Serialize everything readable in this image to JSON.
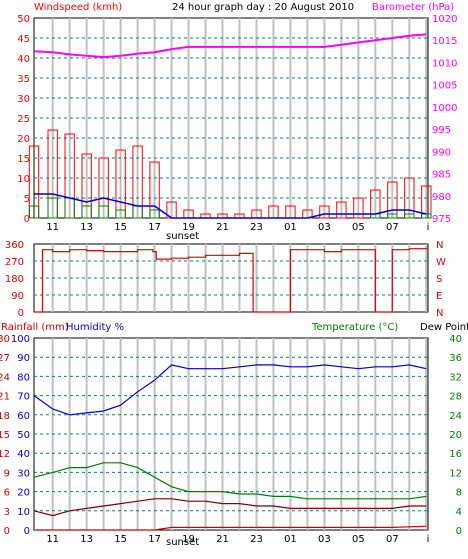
{
  "colors": {
    "wind_speed": "#ff0000",
    "wind_gust": "#008000",
    "wind_avg": "#0000cc",
    "barometer": "#ff00ff",
    "direction": "#dd0000",
    "humidity": "#0000cc",
    "temperature": "#008000",
    "dew_point": "#800000",
    "rainfall": "#cc0000",
    "grid_hour": "#c0c0c0",
    "grid_dash": "#008080"
  },
  "header": {
    "windspeed_label": "Windspeed (kmh)",
    "graph_title": "24 hour graph day : 20 August 2010",
    "barometer_label": "Barometer (hPa)"
  },
  "temp_header": {
    "rainfall_label": "Rainfall (mm)",
    "humidity_label": "Humidity %",
    "temperature_label": "Temperature (°C)",
    "dewpoint_label": "Dew Point"
  },
  "sunset_label": "sunset",
  "chart_data": [
    {
      "type": "line",
      "title": "24 hour graph day : 20 August 2010",
      "x_ticks": [
        "11",
        "13",
        "15",
        "17",
        "19",
        "21",
        "23",
        "01",
        "03",
        "05",
        "07"
      ],
      "left_axis": {
        "label": "Windspeed (kmh)",
        "ylim": [
          0,
          50
        ],
        "ticks": [
          "0",
          "5",
          "10",
          "15",
          "20",
          "25",
          "30",
          "35",
          "40",
          "45",
          "50"
        ]
      },
      "right_axis": {
        "label": "Barometer (hPa)",
        "ylim": [
          975,
          1020
        ],
        "ticks": [
          "975",
          "980",
          "985",
          "990",
          "995",
          "1000",
          "1005",
          "1010",
          "1015",
          "1020"
        ]
      },
      "x_hours": [
        9.9,
        11,
        12,
        13,
        14,
        15,
        16,
        17,
        18,
        19,
        20,
        21,
        22,
        23,
        24,
        25,
        26,
        27,
        28,
        29,
        30,
        31,
        32,
        33
      ],
      "series": [
        {
          "key": "gust",
          "axis": "left",
          "style": "bars",
          "values": [
            18,
            22,
            21,
            16,
            15,
            17,
            18,
            14,
            4,
            2,
            1,
            1,
            1,
            2,
            3,
            3,
            2,
            3,
            4,
            5,
            7,
            9,
            10,
            8
          ]
        },
        {
          "key": "speed",
          "axis": "left",
          "style": "bars",
          "values": [
            3,
            5,
            5,
            3,
            3,
            2,
            3,
            2,
            0,
            0,
            0,
            0,
            0,
            0,
            0,
            0,
            0,
            0,
            0,
            0,
            1,
            1,
            1,
            1
          ]
        },
        {
          "key": "avg",
          "axis": "left",
          "style": "line",
          "values": [
            6,
            6,
            5,
            4,
            5,
            4,
            3,
            3,
            0,
            0,
            0,
            0,
            0,
            0,
            0,
            0,
            0,
            1,
            1,
            1,
            1,
            2,
            2,
            1
          ]
        },
        {
          "key": "barometer",
          "axis": "right",
          "style": "line",
          "values": [
            1012.5,
            1012.3,
            1011.8,
            1011.5,
            1011.2,
            1011.5,
            1012,
            1012.3,
            1013,
            1013.5,
            1013.5,
            1013.5,
            1013.5,
            1013.5,
            1013.5,
            1013.5,
            1013.5,
            1013.5,
            1014,
            1014.5,
            1015,
            1015.5,
            1016,
            1016.3
          ]
        }
      ]
    },
    {
      "type": "line",
      "title": "",
      "y_ticks": [
        "0",
        "90",
        "180",
        "270",
        "360"
      ],
      "ylim": [
        0,
        360
      ],
      "right_labels": [
        "N",
        "W",
        "S",
        "E",
        "N"
      ],
      "x_hours": [
        9.9,
        10.4,
        11,
        12,
        13,
        14,
        15,
        16,
        16.9,
        17.1,
        18,
        19,
        20,
        21,
        22,
        22.8,
        23.5,
        24,
        24.5,
        25,
        26,
        27,
        28,
        29,
        30,
        31,
        32,
        33
      ],
      "series": [
        {
          "key": "direction",
          "values": [
            0,
            330,
            320,
            330,
            325,
            320,
            320,
            330,
            320,
            280,
            285,
            290,
            300,
            300,
            310,
            0,
            0,
            0,
            0,
            330,
            330,
            320,
            330,
            330,
            0,
            330,
            335,
            340
          ]
        }
      ]
    },
    {
      "type": "line",
      "title": "",
      "left_axis_rain": {
        "label": "Rainfall (mm)",
        "ylim": [
          0,
          30
        ],
        "ticks": [
          "0",
          "3",
          "6",
          "9",
          "12",
          "15",
          "18",
          "21",
          "24",
          "27",
          "30"
        ]
      },
      "left_axis_humidity": {
        "label": "Humidity %",
        "ylim": [
          0,
          100
        ],
        "ticks": [
          "0",
          "10",
          "20",
          "30",
          "40",
          "50",
          "60",
          "70",
          "80",
          "90",
          "100"
        ]
      },
      "right_axis": {
        "label": "Temperature (°C)",
        "ylim": [
          0,
          40
        ],
        "ticks": [
          "0",
          "4",
          "8",
          "12",
          "16",
          "20",
          "24",
          "28",
          "32",
          "36",
          "40"
        ]
      },
      "dew_point_label": "Dew Point",
      "x_hours": [
        9.9,
        11,
        12,
        13,
        14,
        15,
        16,
        17,
        18,
        19,
        20,
        21,
        22,
        23,
        24,
        25,
        26,
        27,
        28,
        29,
        30,
        31,
        32,
        33
      ],
      "series": [
        {
          "key": "humidity",
          "axis": "humidity",
          "values": [
            70,
            63,
            60,
            61,
            62,
            65,
            72,
            78,
            86,
            84,
            84,
            84,
            85,
            86,
            86,
            85,
            85,
            86,
            85,
            84,
            85,
            85,
            86,
            84
          ]
        },
        {
          "key": "temperature",
          "axis": "temperature",
          "values": [
            11,
            12,
            13,
            13,
            14,
            14,
            13,
            11,
            9,
            8,
            8,
            8,
            7.5,
            7.5,
            7,
            7,
            6.5,
            6.5,
            6.5,
            6.5,
            6.5,
            6.5,
            6.5,
            7
          ]
        },
        {
          "key": "dew_point",
          "axis": "temperature",
          "values": [
            4,
            3,
            4,
            4.5,
            5,
            5.5,
            6,
            6.5,
            6.5,
            6,
            6,
            5.5,
            5.5,
            5,
            5,
            4.5,
            4.5,
            4.5,
            4.5,
            4.5,
            4.5,
            4.5,
            5,
            5
          ]
        },
        {
          "key": "rainfall",
          "axis": "rain",
          "values": [
            0,
            0,
            0,
            0,
            0,
            0,
            0,
            0,
            0.4,
            0.4,
            0.4,
            0.4,
            0.4,
            0.4,
            0.4,
            0.4,
            0.4,
            0.4,
            0.4,
            0.4,
            0.4,
            0.4,
            0.5,
            0.6
          ]
        }
      ]
    }
  ]
}
